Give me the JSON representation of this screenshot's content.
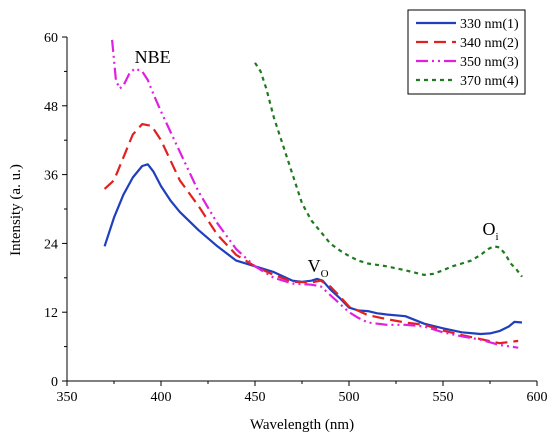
{
  "chart_data": {
    "type": "line",
    "xlabel": "Wavelength (nm)",
    "ylabel": "Intensity (a. u.)",
    "xlim": [
      350,
      600
    ],
    "ylim": [
      0,
      60
    ],
    "xticks": [
      350,
      400,
      450,
      500,
      550,
      600
    ],
    "yticks": [
      0,
      12,
      24,
      36,
      48,
      60
    ],
    "grid": false,
    "legend_position": "top-right",
    "series": [
      {
        "name": "330 nm(1)",
        "color": "#1f3fbf",
        "dash": "solid",
        "x": [
          370,
          375,
          380,
          385,
          390,
          393,
          396,
          400,
          405,
          410,
          420,
          430,
          440,
          450,
          460,
          470,
          475,
          480,
          483,
          486,
          490,
          495,
          500,
          505,
          510,
          515,
          520,
          530,
          540,
          550,
          560,
          570,
          575,
          580,
          585,
          588,
          592
        ],
        "y": [
          23.5,
          28.5,
          32.5,
          35.5,
          37.5,
          37.8,
          36.5,
          34,
          31.5,
          29.5,
          26.3,
          23.5,
          21,
          20,
          19,
          17.5,
          17.3,
          17.5,
          17.8,
          17.5,
          16,
          14.5,
          12.8,
          12.3,
          12.2,
          11.8,
          11.6,
          11.3,
          10,
          9.2,
          8.5,
          8.2,
          8.3,
          8.7,
          9.5,
          10.3,
          10.2
        ]
      },
      {
        "name": "340 nm(2)",
        "color": "#e32020",
        "dash": "12 6",
        "x": [
          370,
          375,
          380,
          385,
          390,
          395,
          400,
          405,
          410,
          420,
          430,
          440,
          450,
          460,
          470,
          480,
          485,
          490,
          495,
          500,
          510,
          520,
          530,
          540,
          550,
          560,
          570,
          580,
          590
        ],
        "y": [
          33.5,
          35,
          39,
          43,
          44.8,
          44.5,
          42,
          38.5,
          35,
          30.5,
          25.5,
          22,
          20,
          18.5,
          17.3,
          17.2,
          17.5,
          16.5,
          14.8,
          13,
          11.5,
          10.8,
          10.2,
          9.8,
          8.8,
          8,
          7.3,
          6.6,
          7
        ]
      },
      {
        "name": "350 nm(3)",
        "color": "#e020e0",
        "dash": "12 4 2 4 2 4",
        "x": [
          374,
          376,
          378,
          380,
          383,
          386,
          390,
          393,
          396,
          400,
          405,
          410,
          420,
          430,
          440,
          450,
          460,
          470,
          480,
          485,
          490,
          495,
          500,
          505,
          510,
          520,
          530,
          540,
          550,
          560,
          570,
          580,
          590
        ],
        "y": [
          59.5,
          52.5,
          51,
          51.5,
          53.5,
          54.5,
          54,
          52.5,
          50,
          47,
          43.5,
          40,
          33,
          27.5,
          23,
          20,
          18,
          17,
          16.8,
          16.5,
          15,
          13.5,
          12,
          11,
          10.2,
          9.8,
          9.8,
          9.5,
          8.5,
          7.8,
          7.2,
          6.3,
          5.8
        ]
      },
      {
        "name": "370 nm(4)",
        "color": "#1f7a1f",
        "dash": "4 4",
        "x": [
          450,
          453,
          456,
          460,
          465,
          470,
          475,
          480,
          485,
          490,
          495,
          500,
          505,
          510,
          520,
          530,
          540,
          545,
          550,
          555,
          560,
          565,
          570,
          574,
          577,
          580,
          583,
          586,
          589,
          592
        ],
        "y": [
          55.5,
          54,
          51,
          46,
          41,
          36,
          31,
          28,
          26,
          24,
          22.8,
          21.8,
          21,
          20.5,
          20,
          19.3,
          18.5,
          18.7,
          19.3,
          20,
          20.5,
          21,
          22,
          23,
          23.5,
          23.3,
          22.2,
          20.5,
          19.5,
          18.2
        ]
      }
    ],
    "annotations": [
      {
        "text": "NBE",
        "x": 386,
        "y": 55.5
      },
      {
        "text": "V",
        "sub": "O",
        "x": 478,
        "y": 19
      },
      {
        "text": "O",
        "sub": "i",
        "x": 571,
        "y": 25.5
      }
    ]
  }
}
